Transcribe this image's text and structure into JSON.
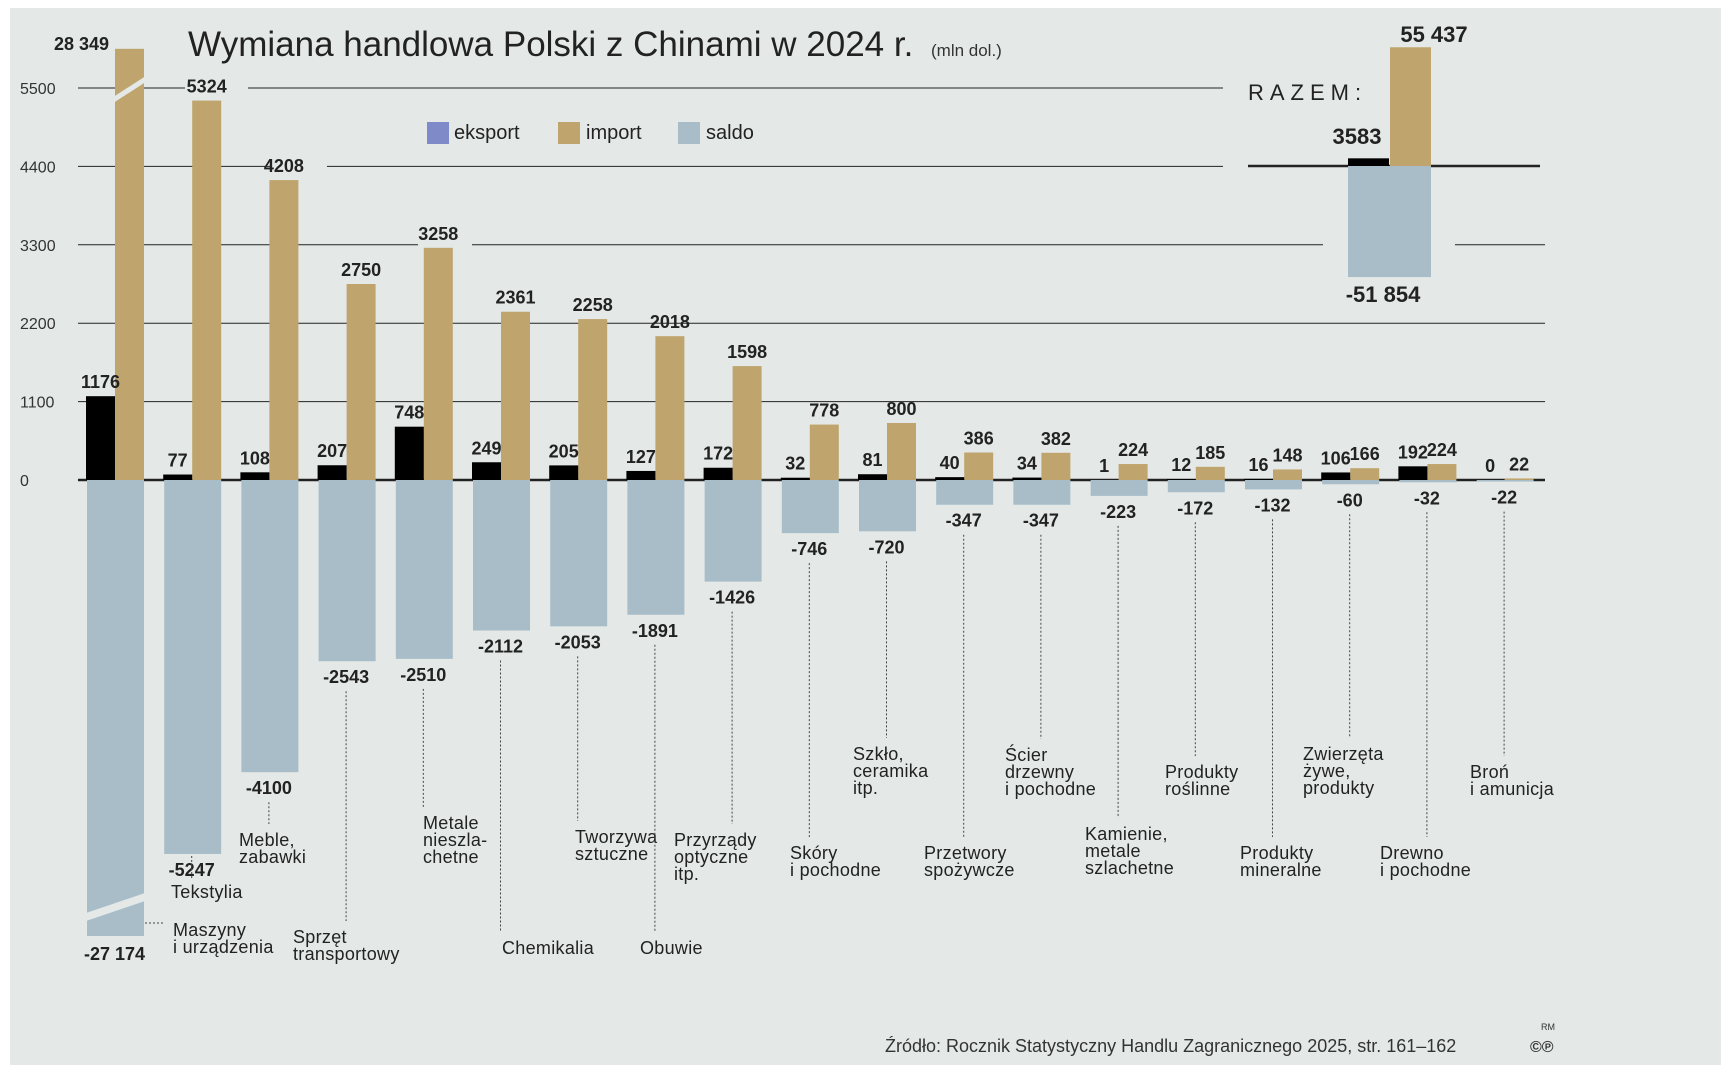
{
  "chart_data": {
    "type": "bar",
    "title": "Wymiana handlowa Polski z Chinami w 2024 r.",
    "subtitle": "(mln dol.)",
    "source": "Źródło: Rocznik Statystyczny Handlu Zagranicznego 2025, str. 161–162",
    "signature": "RM",
    "license": "©℗",
    "legend_position": "top-left",
    "yticks": [
      "0",
      "1100",
      "2200",
      "3300",
      "4400",
      "5500"
    ],
    "ylim": [
      -5300,
      6000
    ],
    "grid": true,
    "colors": {
      "eksport": "#7f8ac8",
      "import": "#bfa46d",
      "saldo": "#a8bdc8"
    },
    "series": [
      {
        "name": "eksport",
        "key": "export"
      },
      {
        "name": "import",
        "key": "import"
      },
      {
        "name": "saldo",
        "key": "saldo"
      }
    ],
    "categories": [
      {
        "name": [
          "Maszyny",
          "i urządzenia"
        ],
        "export": 1176,
        "import": 28349,
        "saldo": -27174,
        "export_label": "1176",
        "import_label": "28 349",
        "saldo_label": "-27 174",
        "broken": true
      },
      {
        "name": [
          "Tekstylia"
        ],
        "export": 77,
        "import": 5324,
        "saldo": -5247,
        "export_label": "77",
        "import_label": "5324",
        "saldo_label": "-5247"
      },
      {
        "name": [
          "Meble,",
          "zabawki"
        ],
        "export": 108,
        "import": 4208,
        "saldo": -4100,
        "export_label": "108",
        "import_label": "4208",
        "saldo_label": "-4100"
      },
      {
        "name": [
          "Sprzęt",
          "transportowy"
        ],
        "export": 207,
        "import": 2750,
        "saldo": -2543,
        "export_label": "207",
        "import_label": "2750",
        "saldo_label": "-2543"
      },
      {
        "name": [
          "Metale",
          "nieszla-",
          "chetne"
        ],
        "export": 748,
        "import": 3258,
        "saldo": -2510,
        "export_label": "748",
        "import_label": "3258",
        "saldo_label": "-2510"
      },
      {
        "name": [
          "Chemikalia"
        ],
        "export": 249,
        "import": 2361,
        "saldo": -2112,
        "export_label": "249",
        "import_label": "2361",
        "saldo_label": "-2112"
      },
      {
        "name": [
          "Tworzywa",
          "sztuczne"
        ],
        "export": 205,
        "import": 2258,
        "saldo": -2053,
        "export_label": "205",
        "import_label": "2258",
        "saldo_label": "-2053"
      },
      {
        "name": [
          "Obuwie"
        ],
        "export": 127,
        "import": 2018,
        "saldo": -1891,
        "export_label": "127",
        "import_label": "2018",
        "saldo_label": "-1891"
      },
      {
        "name": [
          "Przyrządy",
          "optyczne",
          "itp."
        ],
        "export": 172,
        "import": 1598,
        "saldo": -1426,
        "export_label": "172",
        "import_label": "1598",
        "saldo_label": "-1426"
      },
      {
        "name": [
          "Skóry",
          "i pochodne"
        ],
        "export": 32,
        "import": 778,
        "saldo": -746,
        "export_label": "32",
        "import_label": "778",
        "saldo_label": "-746"
      },
      {
        "name": [
          "Szkło,",
          "ceramika",
          "itp."
        ],
        "export": 81,
        "import": 800,
        "saldo": -720,
        "export_label": "81",
        "import_label": "800",
        "saldo_label": "-720"
      },
      {
        "name": [
          "Przetwory",
          "spożywcze"
        ],
        "export": 40,
        "import": 386,
        "saldo": -347,
        "export_label": "40",
        "import_label": "386",
        "saldo_label": "-347"
      },
      {
        "name": [
          "Ścier",
          "drzewny",
          "i pochodne"
        ],
        "export": 34,
        "import": 382,
        "saldo": -347,
        "export_label": "34",
        "import_label": "382",
        "saldo_label": "-347"
      },
      {
        "name": [
          "Kamienie,",
          "metale",
          "szlachetne"
        ],
        "export": 1,
        "import": 224,
        "saldo": -223,
        "export_label": "1",
        "import_label": "224",
        "saldo_label": "-223"
      },
      {
        "name": [
          "Produkty",
          "roślinne"
        ],
        "export": 12,
        "import": 185,
        "saldo": -172,
        "export_label": "12",
        "import_label": "185",
        "saldo_label": "-172"
      },
      {
        "name": [
          "Produkty",
          "mineralne"
        ],
        "export": 16,
        "import": 148,
        "saldo": -132,
        "export_label": "16",
        "import_label": "148",
        "saldo_label": "-132"
      },
      {
        "name": [
          "Zwierzęta",
          "żywe,",
          "produkty"
        ],
        "export": 106,
        "import": 166,
        "saldo": -60,
        "export_label": "106",
        "import_label": "166",
        "saldo_label": "-60"
      },
      {
        "name": [
          "Drewno",
          "i pochodne"
        ],
        "export": 192,
        "import": 224,
        "saldo": -32,
        "export_label": "192",
        "import_label": "224",
        "saldo_label": "-32"
      },
      {
        "name": [
          "Broń",
          "i amunicja"
        ],
        "export": 0,
        "import": 22,
        "saldo": -22,
        "export_label": "0",
        "import_label": "22",
        "saldo_label": "-22"
      }
    ],
    "total": {
      "label": "RAZEM:",
      "export": 3583,
      "import": 55437,
      "saldo": -51854,
      "export_label": "3583",
      "import_label": "55 437",
      "saldo_label": "-51 854"
    }
  }
}
